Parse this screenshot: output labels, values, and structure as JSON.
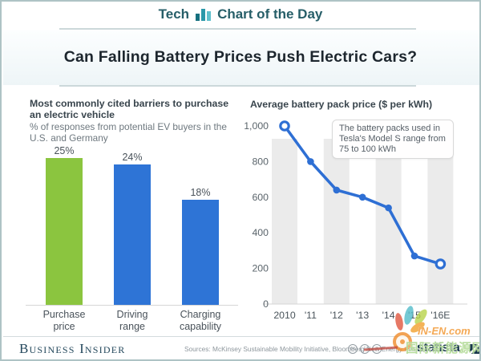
{
  "frame": {
    "border_color": "#aec3c5"
  },
  "header": {
    "brand_prefix": "Tech",
    "brand_suffix": "Chart of the Day",
    "icon": "bar-chart-icon",
    "text_color": "#265e68"
  },
  "headline": {
    "title": "Can Falling Battery Prices Push Electric Cars?"
  },
  "chart_data": [
    {
      "type": "bar",
      "title": "Most commonly cited barriers to purchase an electric vehicle",
      "subtitle": "% of responses from potential EV buyers in the U.S. and Germany",
      "categories": [
        "Purchase price",
        "Driving range",
        "Charging capability"
      ],
      "values": [
        25,
        24,
        18
      ],
      "value_labels": [
        "25%",
        "24%",
        "18%"
      ],
      "bar_colors": [
        "#8bc53f",
        "#2e74d6",
        "#2e74d6"
      ],
      "ylim": [
        0,
        26
      ],
      "grid": "off",
      "legend": "none"
    },
    {
      "type": "line",
      "title": "Average battery pack price ($ per kWh)",
      "categories": [
        "2010",
        "'11",
        "'12",
        "'13",
        "'14",
        "'15",
        "'16E"
      ],
      "values": [
        1000,
        800,
        640,
        600,
        540,
        270,
        225
      ],
      "yticks": [
        0,
        200,
        400,
        600,
        800,
        1000
      ],
      "ytick_labels": [
        "0",
        "200",
        "400",
        "600",
        "800",
        "1,000"
      ],
      "ylim": [
        0,
        1000
      ],
      "line_color": "#2e6fd4",
      "stripe_color": "#ebebeb",
      "grid": "alternating-column-stripes",
      "endpoint_marker": "open-circle",
      "inner_marker": "filled-dot",
      "annotation": "The battery packs used in Tesla's Model S range from 75 to 100 kWh",
      "legend": "none"
    }
  ],
  "footer": {
    "publisher": "Business Insider",
    "sources": "Sources: McKinsey Sustainable Mobility Initiative, Bloomberg New Energy Finance",
    "license_glyphs": [
      "cc",
      "i",
      "="
    ],
    "brand": "statista"
  },
  "watermark": {
    "site": "IN-EN.com",
    "chinese": "国际新能源网"
  }
}
